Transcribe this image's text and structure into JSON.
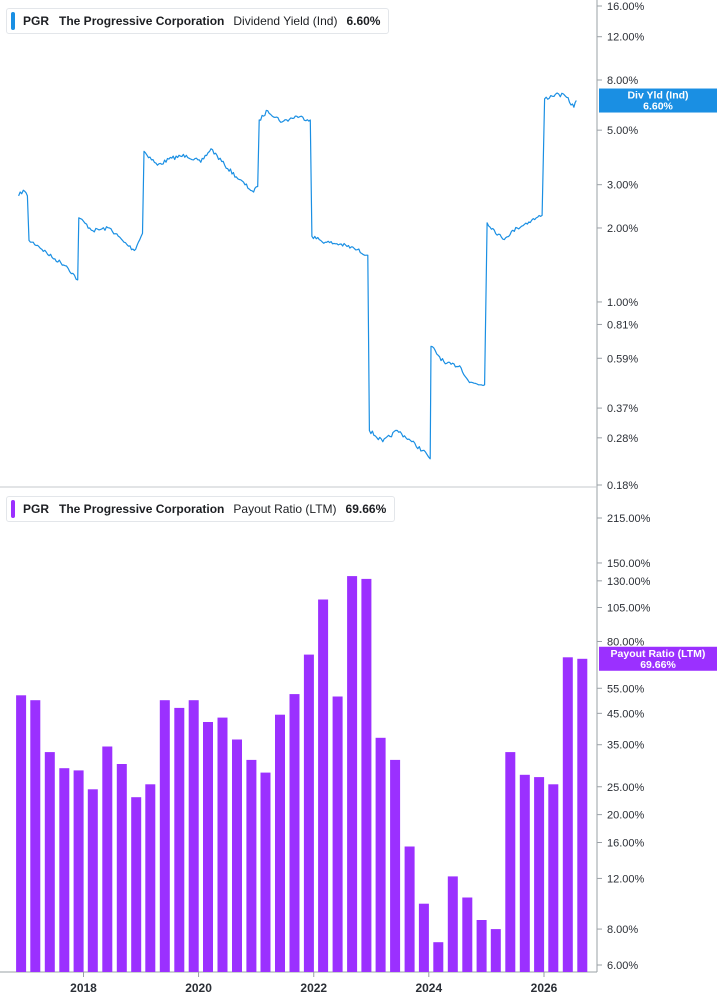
{
  "panels": [
    {
      "ticker": "PGR",
      "company": "The Progressive Corporation",
      "metric": "Dividend Yield (Ind)",
      "value": "6.60%",
      "color": "#1a8fe3",
      "badge_label": "Div Yld (Ind)",
      "badge_value": "6.60%"
    },
    {
      "ticker": "PGR",
      "company": "The Progressive Corporation",
      "metric": "Payout Ratio (LTM)",
      "value": "69.66%",
      "color": "#9b30ff",
      "badge_label": "Payout Ratio (LTM)",
      "badge_value": "69.66%"
    }
  ],
  "chart_data": [
    {
      "type": "line",
      "title": "PGR The Progressive Corporation Dividend Yield (Ind) 6.60%",
      "y_scale": "log",
      "y_unit": "%",
      "ylim": [
        0.18,
        16.0
      ],
      "y_ticks": [
        "16.00%",
        "12.00%",
        "8.00%",
        "5.00%",
        "3.00%",
        "2.00%",
        "1.00%",
        "0.81%",
        "0.59%",
        "0.37%",
        "0.28%",
        "0.18%"
      ],
      "x_ticks": [
        "2018",
        "2020",
        "2022",
        "2024",
        "2026"
      ],
      "x_range": [
        "2016-11-15",
        "2026-09-15"
      ],
      "series": [
        {
          "name": "Div Yld (Ind)",
          "points": [
            [
              "2016-11-15",
              2.7
            ],
            [
              "2016-12-15",
              2.85
            ],
            [
              "2017-01-10",
              2.7
            ],
            [
              "2017-01-20",
              1.78
            ],
            [
              "2017-03-15",
              1.7
            ],
            [
              "2017-06-15",
              1.52
            ],
            [
              "2017-09-15",
              1.4
            ],
            [
              "2017-11-25",
              1.23
            ],
            [
              "2017-12-02",
              2.2
            ],
            [
              "2018-03-01",
              1.95
            ],
            [
              "2018-06-15",
              2.0
            ],
            [
              "2018-09-15",
              1.75
            ],
            [
              "2018-11-20",
              1.62
            ],
            [
              "2018-12-15",
              1.75
            ],
            [
              "2019-01-10",
              1.9
            ],
            [
              "2019-01-20",
              4.1
            ],
            [
              "2019-04-15",
              3.6
            ],
            [
              "2019-07-15",
              3.85
            ],
            [
              "2019-10-15",
              3.95
            ],
            [
              "2020-01-15",
              3.7
            ],
            [
              "2020-03-20",
              4.2
            ],
            [
              "2020-06-15",
              3.6
            ],
            [
              "2020-09-15",
              3.15
            ],
            [
              "2020-12-15",
              2.8
            ],
            [
              "2021-01-10",
              2.95
            ],
            [
              "2021-01-20",
              5.5
            ],
            [
              "2021-03-15",
              6.0
            ],
            [
              "2021-06-15",
              5.4
            ],
            [
              "2021-09-15",
              5.7
            ],
            [
              "2021-12-10",
              5.5
            ],
            [
              "2021-12-20",
              1.85
            ],
            [
              "2022-03-15",
              1.75
            ],
            [
              "2022-06-15",
              1.72
            ],
            [
              "2022-09-15",
              1.65
            ],
            [
              "2022-12-10",
              1.55
            ],
            [
              "2022-12-20",
              0.3
            ],
            [
              "2023-03-15",
              0.27
            ],
            [
              "2023-06-15",
              0.3
            ],
            [
              "2023-09-15",
              0.27
            ],
            [
              "2023-12-20",
              0.24
            ],
            [
              "2024-01-10",
              0.23
            ],
            [
              "2024-01-15",
              0.66
            ],
            [
              "2024-04-15",
              0.56
            ],
            [
              "2024-07-15",
              0.55
            ],
            [
              "2024-09-15",
              0.47
            ],
            [
              "2024-12-20",
              0.46
            ],
            [
              "2025-01-05",
              2.1
            ],
            [
              "2025-04-15",
              1.8
            ],
            [
              "2025-07-15",
              2.0
            ],
            [
              "2025-10-15",
              2.15
            ],
            [
              "2025-12-20",
              2.25
            ],
            [
              "2026-01-05",
              6.7
            ],
            [
              "2026-03-15",
              7.0
            ],
            [
              "2026-05-15",
              6.9
            ],
            [
              "2026-07-10",
              6.2
            ],
            [
              "2026-07-25",
              6.6
            ]
          ]
        }
      ]
    },
    {
      "type": "bar",
      "title": "PGR The Progressive Corporation Payout Ratio (LTM) 69.66%",
      "y_scale": "log",
      "y_unit": "%",
      "ylim": [
        6.0,
        215.0
      ],
      "y_ticks": [
        "215.00%",
        "150.00%",
        "130.00%",
        "105.00%",
        "80.00%",
        "55.00%",
        "45.00%",
        "35.00%",
        "25.00%",
        "20.00%",
        "16.00%",
        "12.00%",
        "8.00%",
        "6.00%"
      ],
      "x_ticks": [
        "2018",
        "2020",
        "2022",
        "2024",
        "2026"
      ],
      "series": [
        {
          "name": "Payout Ratio (LTM)",
          "points": [
            [
              "2016-12",
              52
            ],
            [
              "2017-03",
              50
            ],
            [
              "2017-06",
              33
            ],
            [
              "2017-09",
              29
            ],
            [
              "2017-12",
              28.5
            ],
            [
              "2018-03",
              24.5
            ],
            [
              "2018-06",
              34.5
            ],
            [
              "2018-09",
              30
            ],
            [
              "2018-12",
              23
            ],
            [
              "2019-03",
              25.5
            ],
            [
              "2019-06",
              50
            ],
            [
              "2019-09",
              47
            ],
            [
              "2019-12",
              50
            ],
            [
              "2020-03",
              42
            ],
            [
              "2020-06",
              43.5
            ],
            [
              "2020-09",
              36.5
            ],
            [
              "2020-12",
              31
            ],
            [
              "2021-03",
              28
            ],
            [
              "2021-06",
              44.5
            ],
            [
              "2021-09",
              52.5
            ],
            [
              "2021-12",
              72
            ],
            [
              "2022-03",
              112
            ],
            [
              "2022-06",
              51.5
            ],
            [
              "2022-09",
              135
            ],
            [
              "2022-12",
              132
            ],
            [
              "2023-03",
              37
            ],
            [
              "2023-06",
              31
            ],
            [
              "2023-09",
              15.5
            ],
            [
              "2023-12",
              9.8
            ],
            [
              "2024-03",
              7.2
            ],
            [
              "2024-06",
              12.2
            ],
            [
              "2024-09",
              10.3
            ],
            [
              "2024-12",
              8.6
            ],
            [
              "2025-03",
              8.0
            ],
            [
              "2025-06",
              33
            ],
            [
              "2025-09",
              27.5
            ],
            [
              "2025-12",
              27
            ],
            [
              "2026-03",
              25.5
            ],
            [
              "2026-06",
              70.5
            ],
            [
              "2026-09",
              69.66
            ]
          ]
        }
      ]
    }
  ]
}
